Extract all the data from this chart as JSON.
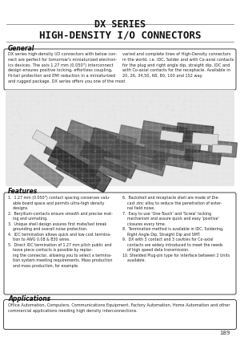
{
  "title_line1": "DX SERIES",
  "title_line2": "HIGH-DENSITY I/O CONNECTORS",
  "bg_color": "#f0f0ec",
  "page_bg": "#ffffff",
  "page_number": "189",
  "general_title": "General",
  "general_text_left": "DX series high-density I/O connectors with below connector are perfect for tomorrow's miniaturized electronics devices. The axis 1.27 mm (0.050\") interconnect design ensures positive locking, effortless coupling, Hi-tail protection and EMI reduction in a miniaturized and rugged package. DX series offers you one of the most",
  "general_text_right": "varied and complete lines of High-Density connectors in the world, i.e. IDC, Solder and with Co-axial contacts for the plug and right angle dip, straight dip, IDC and with Co-axial contacts for the receptacle. Available in 20, 26, 34,50, 68, 80, 100 and 152 way.",
  "features_title": "Features",
  "applications_title": "Applications",
  "applications_text": "Office Automation, Computers, Communications Equipment, Factory Automation, Home Automation and other commercial applications needing high density interconnections."
}
